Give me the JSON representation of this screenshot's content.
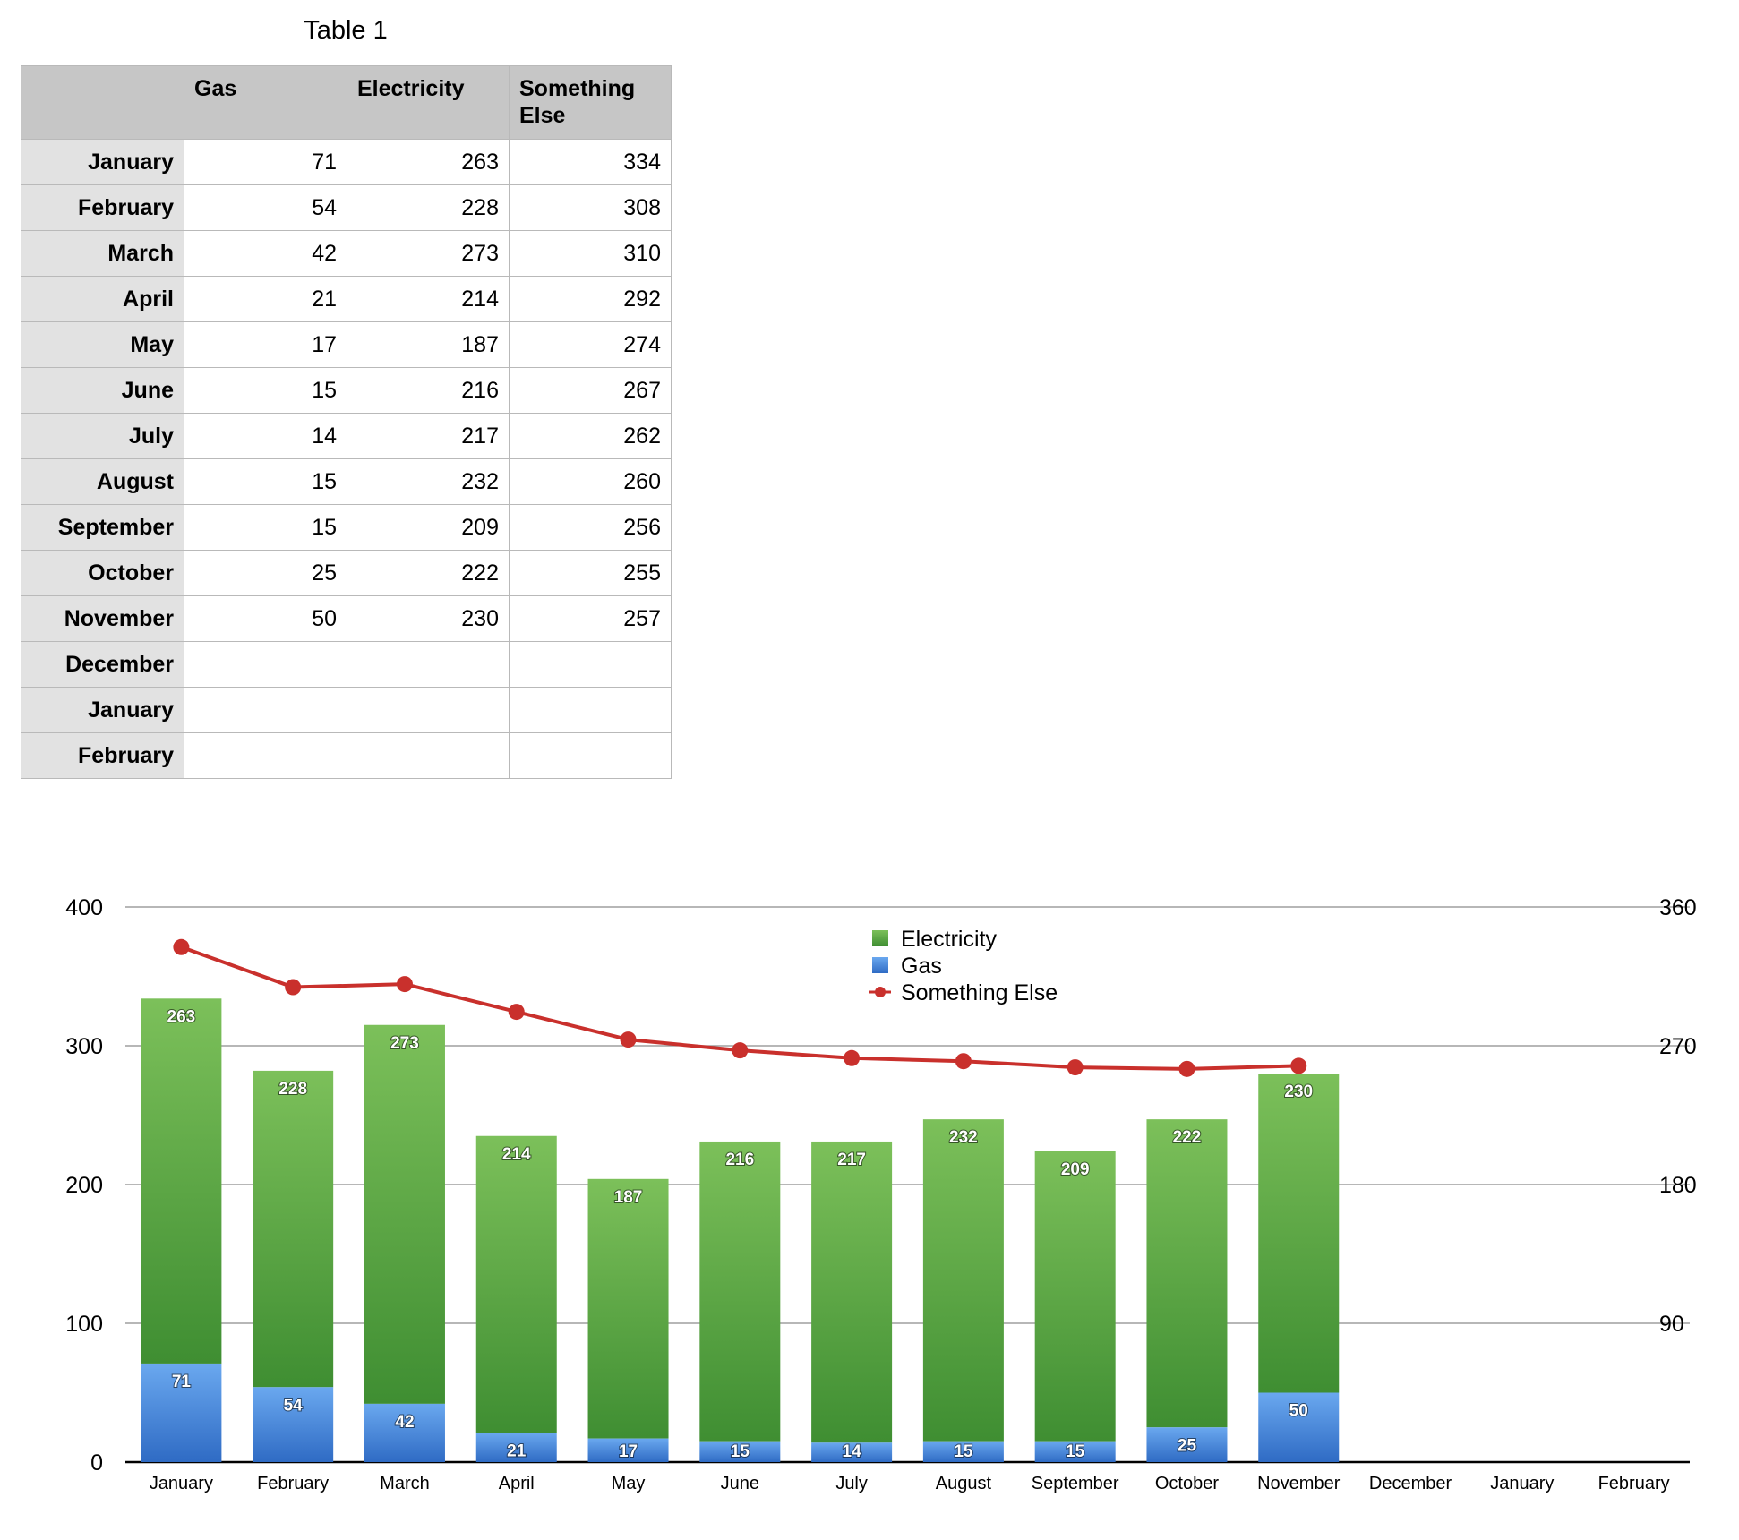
{
  "table": {
    "title": "Table 1",
    "headers": [
      "",
      "Gas",
      "Electricity",
      "Something Else"
    ],
    "rows": [
      {
        "label": "January",
        "cells": [
          "71",
          "263",
          "334"
        ]
      },
      {
        "label": "February",
        "cells": [
          "54",
          "228",
          "308"
        ]
      },
      {
        "label": "March",
        "cells": [
          "42",
          "273",
          "310"
        ]
      },
      {
        "label": "April",
        "cells": [
          "21",
          "214",
          "292"
        ]
      },
      {
        "label": "May",
        "cells": [
          "17",
          "187",
          "274"
        ]
      },
      {
        "label": "June",
        "cells": [
          "15",
          "216",
          "267"
        ]
      },
      {
        "label": "July",
        "cells": [
          "14",
          "217",
          "262"
        ]
      },
      {
        "label": "August",
        "cells": [
          "15",
          "232",
          "260"
        ]
      },
      {
        "label": "September",
        "cells": [
          "15",
          "209",
          "256"
        ]
      },
      {
        "label": "October",
        "cells": [
          "25",
          "222",
          "255"
        ]
      },
      {
        "label": "November",
        "cells": [
          "50",
          "230",
          "257"
        ]
      },
      {
        "label": "December",
        "cells": [
          "",
          "",
          ""
        ]
      },
      {
        "label": "January",
        "cells": [
          "",
          "",
          ""
        ]
      },
      {
        "label": "February",
        "cells": [
          "",
          "",
          ""
        ]
      }
    ]
  },
  "chart_data": {
    "type": "bar",
    "stacked": true,
    "categories": [
      "January",
      "February",
      "March",
      "April",
      "May",
      "June",
      "July",
      "August",
      "September",
      "October",
      "November",
      "December",
      "January",
      "February"
    ],
    "series": [
      {
        "name": "Gas",
        "type": "bar",
        "axis": "left",
        "color": "#3f80d9",
        "values": [
          71,
          54,
          42,
          21,
          17,
          15,
          14,
          15,
          15,
          25,
          50,
          null,
          null,
          null
        ]
      },
      {
        "name": "Electricity",
        "type": "bar",
        "axis": "left",
        "color": "#4c9a3a",
        "values": [
          263,
          228,
          273,
          214,
          187,
          216,
          217,
          232,
          209,
          222,
          230,
          null,
          null,
          null
        ]
      },
      {
        "name": "Something Else",
        "type": "line",
        "axis": "right",
        "color": "#c9302c",
        "values": [
          334,
          308,
          310,
          292,
          274,
          267,
          262,
          260,
          256,
          255,
          257,
          null,
          null,
          null
        ]
      }
    ],
    "ylim": [
      0,
      400
    ],
    "yticks": [
      0,
      100,
      200,
      300,
      400
    ],
    "y2lim": [
      0,
      360
    ],
    "y2ticks": [
      90,
      180,
      270,
      360
    ],
    "grid": true,
    "legend": {
      "position": "top-center",
      "order": [
        "Electricity",
        "Gas",
        "Something Else"
      ]
    },
    "data_labels": true
  }
}
